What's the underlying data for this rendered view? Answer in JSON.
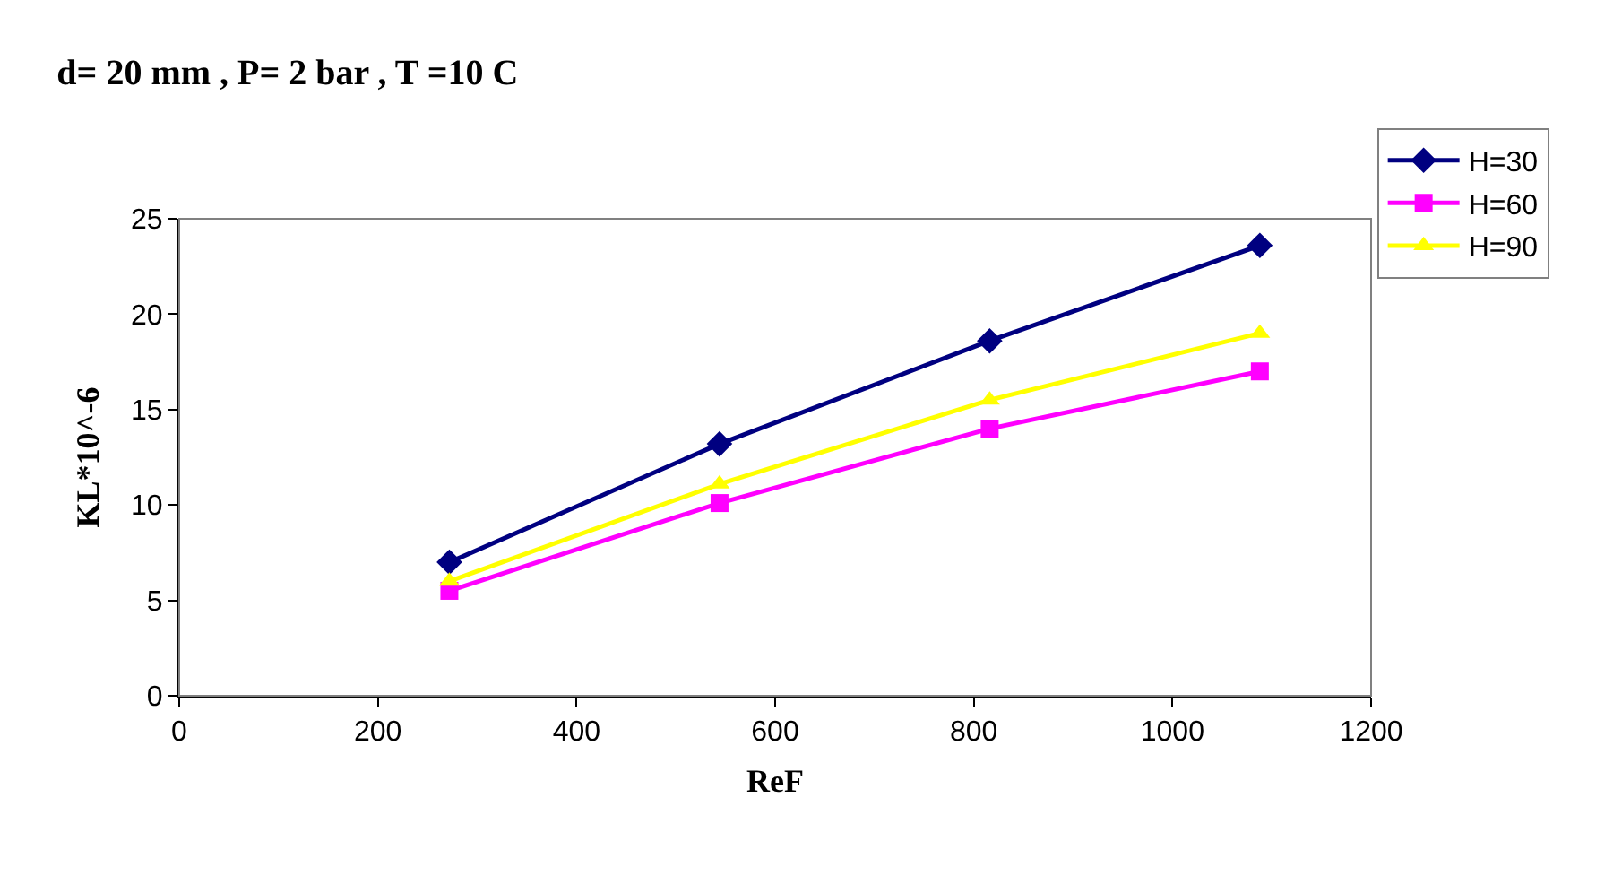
{
  "chart_data": {
    "type": "line",
    "title": "d= 20 mm , P= 2 bar , T =10 C",
    "xlabel": "ReF",
    "ylabel": "KL*10^-6",
    "x": [
      272,
      544,
      816,
      1088
    ],
    "series": [
      {
        "name": "H=30",
        "color": "#000080",
        "marker": "diamond",
        "values": [
          7.0,
          13.2,
          18.6,
          23.6
        ]
      },
      {
        "name": "H=60",
        "color": "#ff00ff",
        "marker": "square",
        "values": [
          5.5,
          10.1,
          14.0,
          17.0
        ]
      },
      {
        "name": "H=90",
        "color": "#ffff00",
        "marker": "triangle",
        "values": [
          6.0,
          11.1,
          15.5,
          19.0
        ]
      }
    ],
    "xlim": [
      0,
      1200
    ],
    "xticks": [
      0,
      200,
      400,
      600,
      800,
      1000,
      1200
    ],
    "ylim": [
      0,
      25
    ],
    "yticks": [
      0,
      5,
      10,
      15,
      20,
      25
    ],
    "grid": false,
    "legend": "top right",
    "line_style": "solid"
  }
}
